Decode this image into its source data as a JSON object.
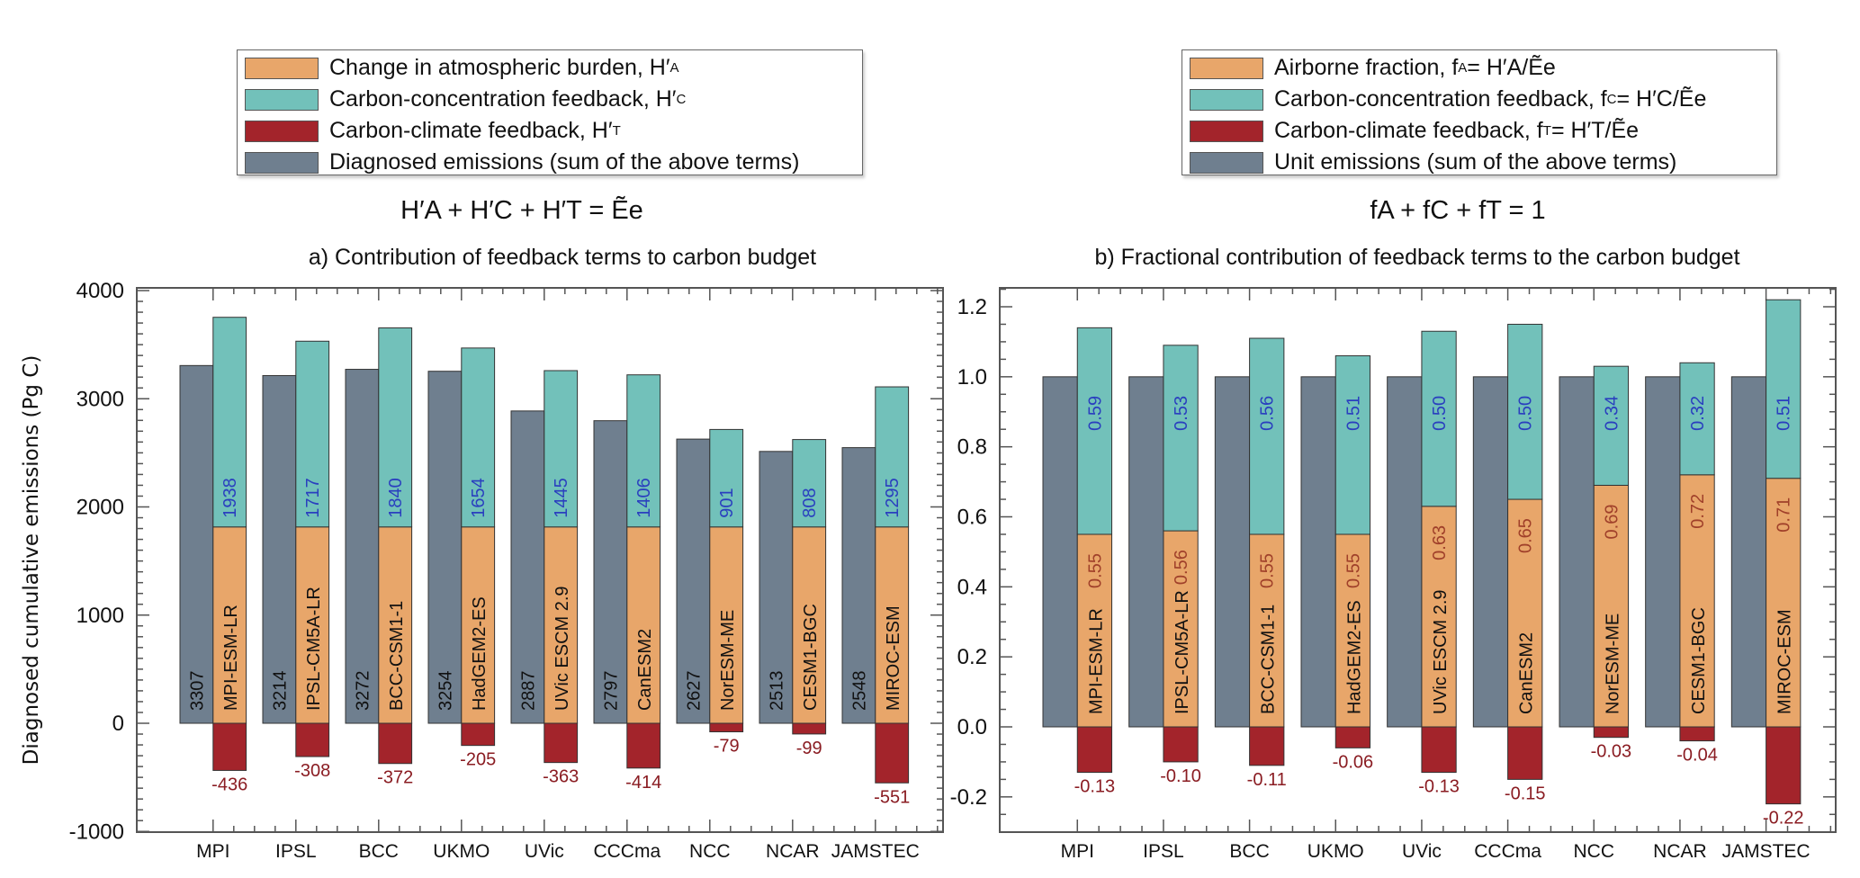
{
  "colors": {
    "atmospheric": "#e8a66a",
    "concentration": "#72c1ba",
    "climate": "#a3242b",
    "emissions": "#6f7f8f",
    "concentration_text": "#2a3fbf",
    "climate_text": "#8a1c22",
    "atmospheric_text": "#a0402a"
  },
  "legend_a": [
    {
      "label": "Change in atmospheric burden, H′",
      "sub": "A",
      "key": "atmospheric"
    },
    {
      "label": "Carbon-concentration feedback, H′",
      "sub": "C",
      "key": "concentration"
    },
    {
      "label": "Carbon-climate feedback, H′",
      "sub": "T",
      "key": "climate"
    },
    {
      "label": "Diagnosed emissions (sum of the above terms)",
      "sub": "",
      "key": "emissions"
    }
  ],
  "legend_b": [
    {
      "label": "Airborne fraction, f",
      "sub": "A",
      "tail": " = H′A/Ẽe",
      "key": "atmospheric"
    },
    {
      "label": "Carbon-concentration feedback, f",
      "sub": "C",
      "tail": " = H′C/Ẽe",
      "key": "concentration"
    },
    {
      "label": "Carbon-climate feedback, f",
      "sub": "T",
      "tail": " = H′T/Ẽe",
      "key": "climate"
    },
    {
      "label": "Unit emissions (sum of the above terms)",
      "sub": "",
      "tail": "",
      "key": "emissions"
    }
  ],
  "formula_a": "H′A + H′C + H′T = Ẽe",
  "formula_b": "fA + fC + fT = 1",
  "chart_data": [
    {
      "type": "bar",
      "title": "a) Contribution of feedback terms to carbon budget",
      "xlabel": "",
      "ylabel": "Diagnosed cumulative emissions (Pg C)",
      "ylim": [
        -1000,
        4000
      ],
      "yticks": [
        "4000",
        "3000",
        "2000",
        "1000",
        "0",
        "-1000"
      ],
      "ytick_values": [
        4000,
        3000,
        2000,
        1000,
        0,
        -1000
      ],
      "categories": [
        "MPI",
        "IPSL",
        "BCC",
        "UKMO",
        "UVic",
        "CCCma",
        "NCC",
        "NCAR",
        "JAMSTEC"
      ],
      "models": [
        "MPI-ESM-LR",
        "IPSL-CM5A-LR",
        "BCC-CSM1-1",
        "HadGEM2-ES",
        "UVic ESCM 2.9",
        "CanESM2",
        "NorESM-ME",
        "CESM1-BGC",
        "MIROC-ESM"
      ],
      "series": [
        {
          "name": "Diagnosed emissions",
          "key": "emissions",
          "values": [
            3307,
            3214,
            3272,
            3254,
            2887,
            2797,
            2627,
            2513,
            2548
          ]
        },
        {
          "name": "Change in atmospheric burden",
          "key": "atmospheric",
          "values": [
            1815,
            1815,
            1815,
            1815,
            1815,
            1815,
            1815,
            1815,
            1815
          ]
        },
        {
          "name": "Carbon-concentration feedback",
          "key": "concentration",
          "values": [
            1938,
            1717,
            1840,
            1654,
            1445,
            1406,
            901,
            808,
            1295
          ]
        },
        {
          "name": "Carbon-climate feedback",
          "key": "climate",
          "values": [
            -436,
            -308,
            -372,
            -205,
            -363,
            -414,
            -79,
            -99,
            -551
          ]
        }
      ],
      "labels": {
        "emissions": [
          "3307",
          "3214",
          "3272",
          "3254",
          "2887",
          "2797",
          "2627",
          "2513",
          "2548"
        ],
        "concentration": [
          "1938",
          "1717",
          "1840",
          "1654",
          "1445",
          "1406",
          "901",
          "808",
          "1295"
        ],
        "climate": [
          "-436",
          "-308",
          "-372",
          "-205",
          "-363",
          "-414",
          "-79",
          "-99",
          "-551"
        ]
      },
      "grid": false
    },
    {
      "type": "bar",
      "title": "b) Fractional contribution of feedback terms to the carbon budget",
      "xlabel": "",
      "ylabel": "",
      "ylim": [
        -0.25,
        1.25
      ],
      "yticks": [
        "1.2",
        "1.0",
        "0.8",
        "0.6",
        "0.4",
        "0.2",
        "0.0",
        "-0.2"
      ],
      "ytick_values": [
        1.2,
        1.0,
        0.8,
        0.6,
        0.4,
        0.2,
        0.0,
        -0.2
      ],
      "categories": [
        "MPI",
        "IPSL",
        "BCC",
        "UKMO",
        "UVic",
        "CCCma",
        "NCC",
        "NCAR",
        "JAMSTEC"
      ],
      "models": [
        "MPI-ESM-LR",
        "IPSL-CM5A-LR",
        "BCC-CSM1-1",
        "HadGEM2-ES",
        "UVic ESCM 2.9",
        "CanESM2",
        "NorESM-ME",
        "CESM1-BGC",
        "MIROC-ESM"
      ],
      "series": [
        {
          "name": "Unit emissions",
          "key": "emissions",
          "values": [
            1,
            1,
            1,
            1,
            1,
            1,
            1,
            1,
            1
          ]
        },
        {
          "name": "Airborne fraction",
          "key": "atmospheric",
          "values": [
            0.55,
            0.56,
            0.55,
            0.55,
            0.63,
            0.65,
            0.69,
            0.72,
            0.71
          ]
        },
        {
          "name": "Carbon-concentration feedback fraction",
          "key": "concentration",
          "values": [
            0.59,
            0.53,
            0.56,
            0.51,
            0.5,
            0.5,
            0.34,
            0.32,
            0.51
          ]
        },
        {
          "name": "Carbon-climate feedback fraction",
          "key": "climate",
          "values": [
            -0.13,
            -0.1,
            -0.11,
            -0.06,
            -0.13,
            -0.15,
            -0.03,
            -0.04,
            -0.22
          ]
        }
      ],
      "labels": {
        "atmospheric": [
          "0.55",
          "0.56",
          "0.55",
          "0.55",
          "0.63",
          "0.65",
          "0.69",
          "0.72",
          "0.71"
        ],
        "concentration": [
          "0.59",
          "0.53",
          "0.56",
          "0.51",
          "0.50",
          "0.50",
          "0.34",
          "0.32",
          "0.51"
        ],
        "climate": [
          "-0.13",
          "-0.10",
          "-0.11",
          "-0.06",
          "-0.13",
          "-0.15",
          "-0.03",
          "-0.04",
          "-0.22"
        ]
      },
      "grid": false
    }
  ]
}
